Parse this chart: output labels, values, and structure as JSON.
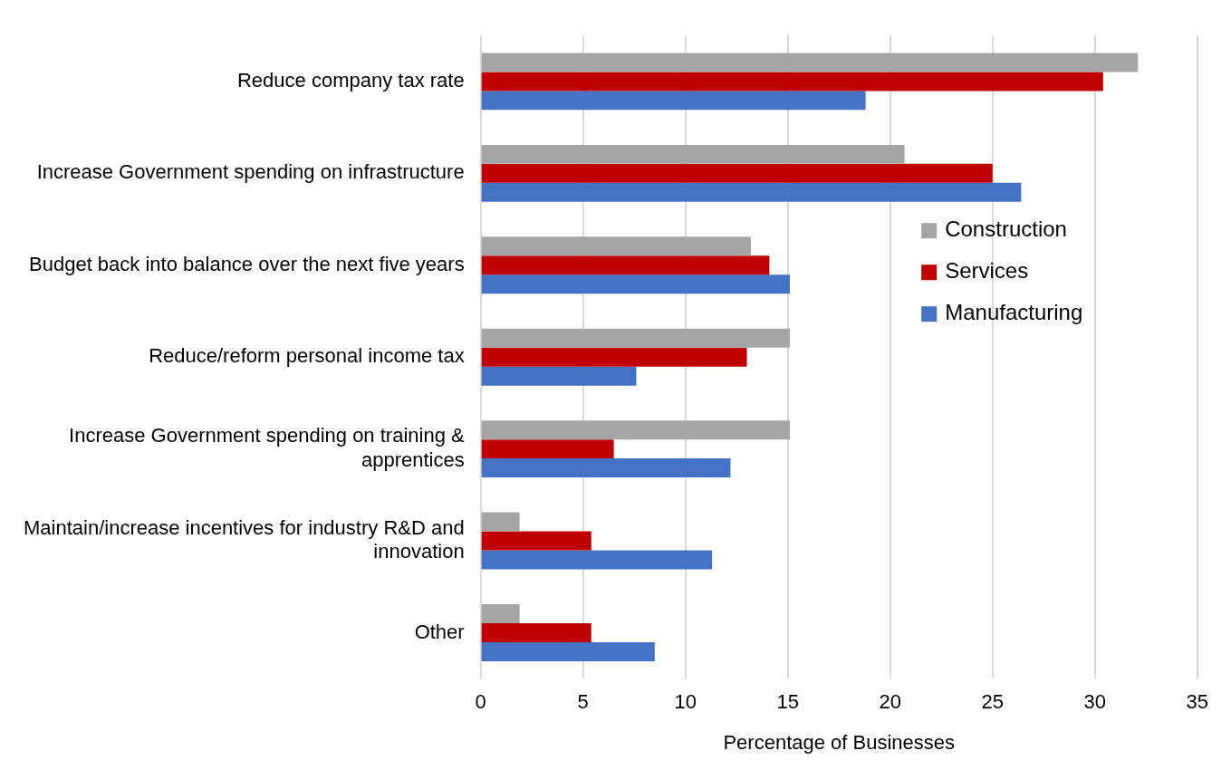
{
  "chart_data": {
    "type": "bar",
    "orientation": "horizontal",
    "xlabel": "Percentage of Businesses",
    "categories": [
      "Reduce company tax rate",
      "Increase Government spending on infrastructure",
      "Budget back into balance over the next five years",
      "Reduce/reform personal income tax",
      "Increase Government spending on training & apprentices",
      "Maintain/increase incentives for industry R&D and innovation",
      "Other"
    ],
    "series": [
      {
        "name": "Construction",
        "color": "#a5a5a5",
        "values": [
          32.1,
          20.7,
          13.2,
          15.1,
          15.1,
          1.9,
          1.9
        ]
      },
      {
        "name": "Services",
        "color": "#c00000",
        "values": [
          30.4,
          25.0,
          14.1,
          13.0,
          6.5,
          5.4,
          5.4
        ]
      },
      {
        "name": "Manufacturing",
        "color": "#4472c4",
        "values": [
          18.8,
          26.4,
          15.1,
          7.6,
          12.2,
          11.3,
          8.5
        ]
      }
    ],
    "xlim": [
      0,
      35
    ],
    "xticks": [
      0,
      5,
      10,
      15,
      20,
      25,
      30,
      35
    ],
    "grid": "x",
    "legend": "right"
  }
}
